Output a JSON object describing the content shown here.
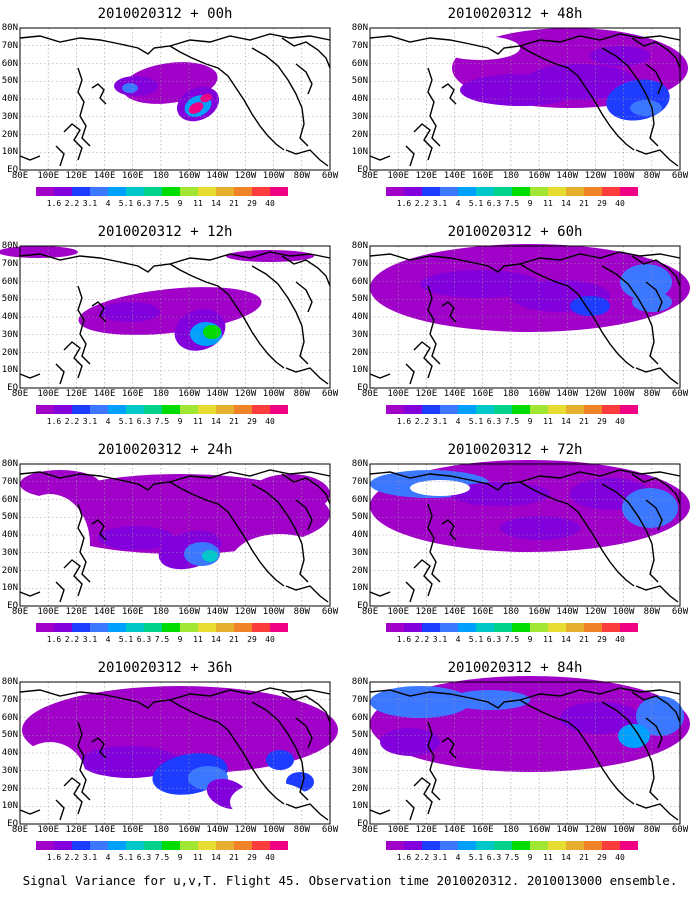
{
  "panels": [
    {
      "title": "2010020312 + 00h",
      "col": 0,
      "row": 0,
      "level": 0
    },
    {
      "title": "2010020312 + 12h",
      "col": 0,
      "row": 1,
      "level": 1
    },
    {
      "title": "2010020312 + 24h",
      "col": 0,
      "row": 2,
      "level": 2
    },
    {
      "title": "2010020312 + 36h",
      "col": 0,
      "row": 3,
      "level": 3
    },
    {
      "title": "2010020312 + 48h",
      "col": 1,
      "row": 0,
      "level": 4
    },
    {
      "title": "2010020312 + 60h",
      "col": 1,
      "row": 1,
      "level": 5
    },
    {
      "title": "2010020312 + 72h",
      "col": 1,
      "row": 2,
      "level": 6
    },
    {
      "title": "2010020312 + 84h",
      "col": 1,
      "row": 3,
      "level": 7
    }
  ],
  "lat_labels": [
    "80N",
    "70N",
    "60N",
    "50N",
    "40N",
    "30N",
    "20N",
    "10N",
    "EQ"
  ],
  "lon_labels": [
    "80E",
    "100E",
    "120E",
    "140E",
    "160E",
    "180",
    "160W",
    "140W",
    "120W",
    "100W",
    "80W",
    "60W"
  ],
  "colorbar": {
    "levels": [
      "1.6",
      "2.2",
      "3.1",
      "4",
      "5.1",
      "6.3",
      "7.5",
      "9",
      "11",
      "14",
      "21",
      "29",
      "40"
    ],
    "colors": [
      "#a000c8",
      "#8200dc",
      "#1e3cff",
      "#3c78ff",
      "#00a0ff",
      "#00c8c8",
      "#00d28c",
      "#00dc00",
      "#a0e632",
      "#e6dc32",
      "#e6af2d",
      "#f08228",
      "#fa3c3c",
      "#f00082"
    ]
  },
  "footer": "Signal Variance for u,v,T. Flight 45. Observation time 2010020312. 2010013000 ensemble."
}
